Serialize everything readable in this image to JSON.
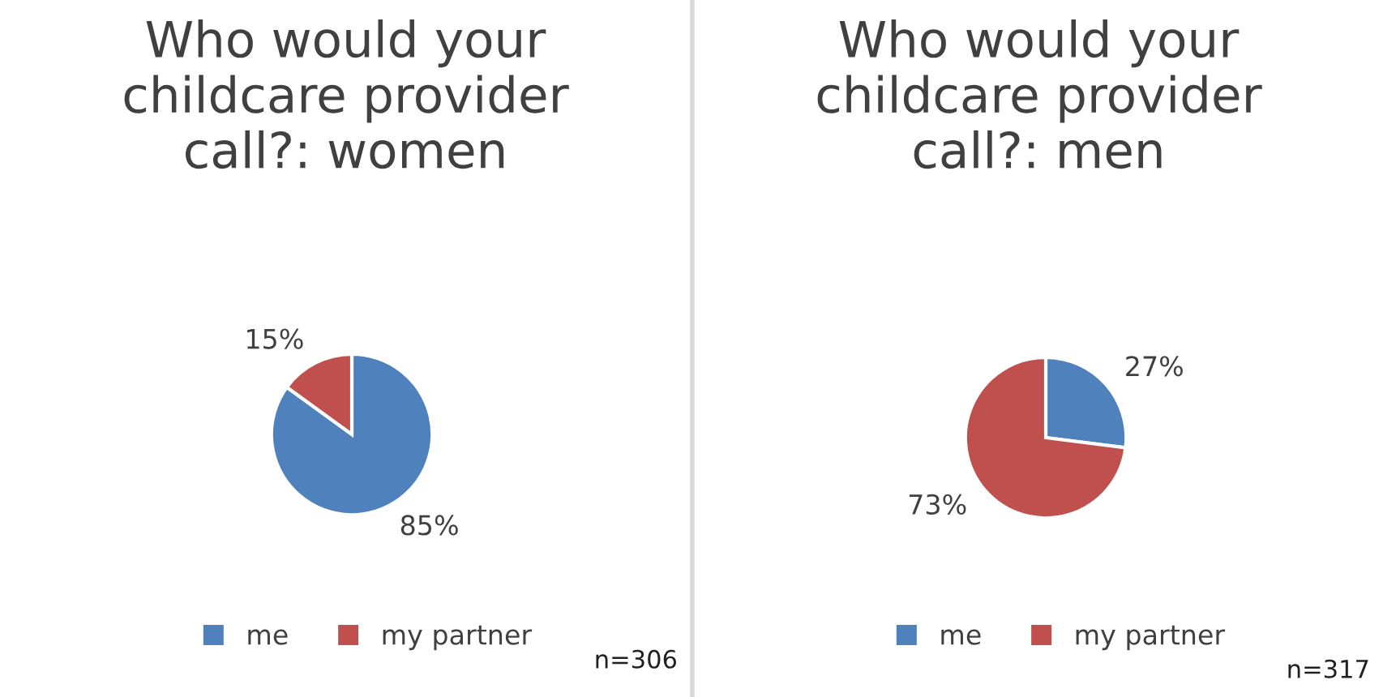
{
  "chart_data": [
    {
      "type": "pie",
      "title": "Who would your\nchildcare provider\ncall?: women",
      "categories": [
        "me",
        "my partner"
      ],
      "values": [
        85,
        15
      ],
      "colors": [
        "#4f81bd",
        "#c0504d"
      ],
      "value_labels": [
        "85%",
        "15%"
      ],
      "legend": "bottom",
      "annotations": [
        "n=306"
      ]
    },
    {
      "type": "pie",
      "title": "Who would your\nchildcare provider\ncall?: men",
      "categories": [
        "me",
        "my partner"
      ],
      "values": [
        27,
        73
      ],
      "colors": [
        "#4f81bd",
        "#c0504d"
      ],
      "value_labels": [
        "27%",
        "73%"
      ],
      "legend": "bottom",
      "annotations": [
        "n=317"
      ]
    }
  ]
}
